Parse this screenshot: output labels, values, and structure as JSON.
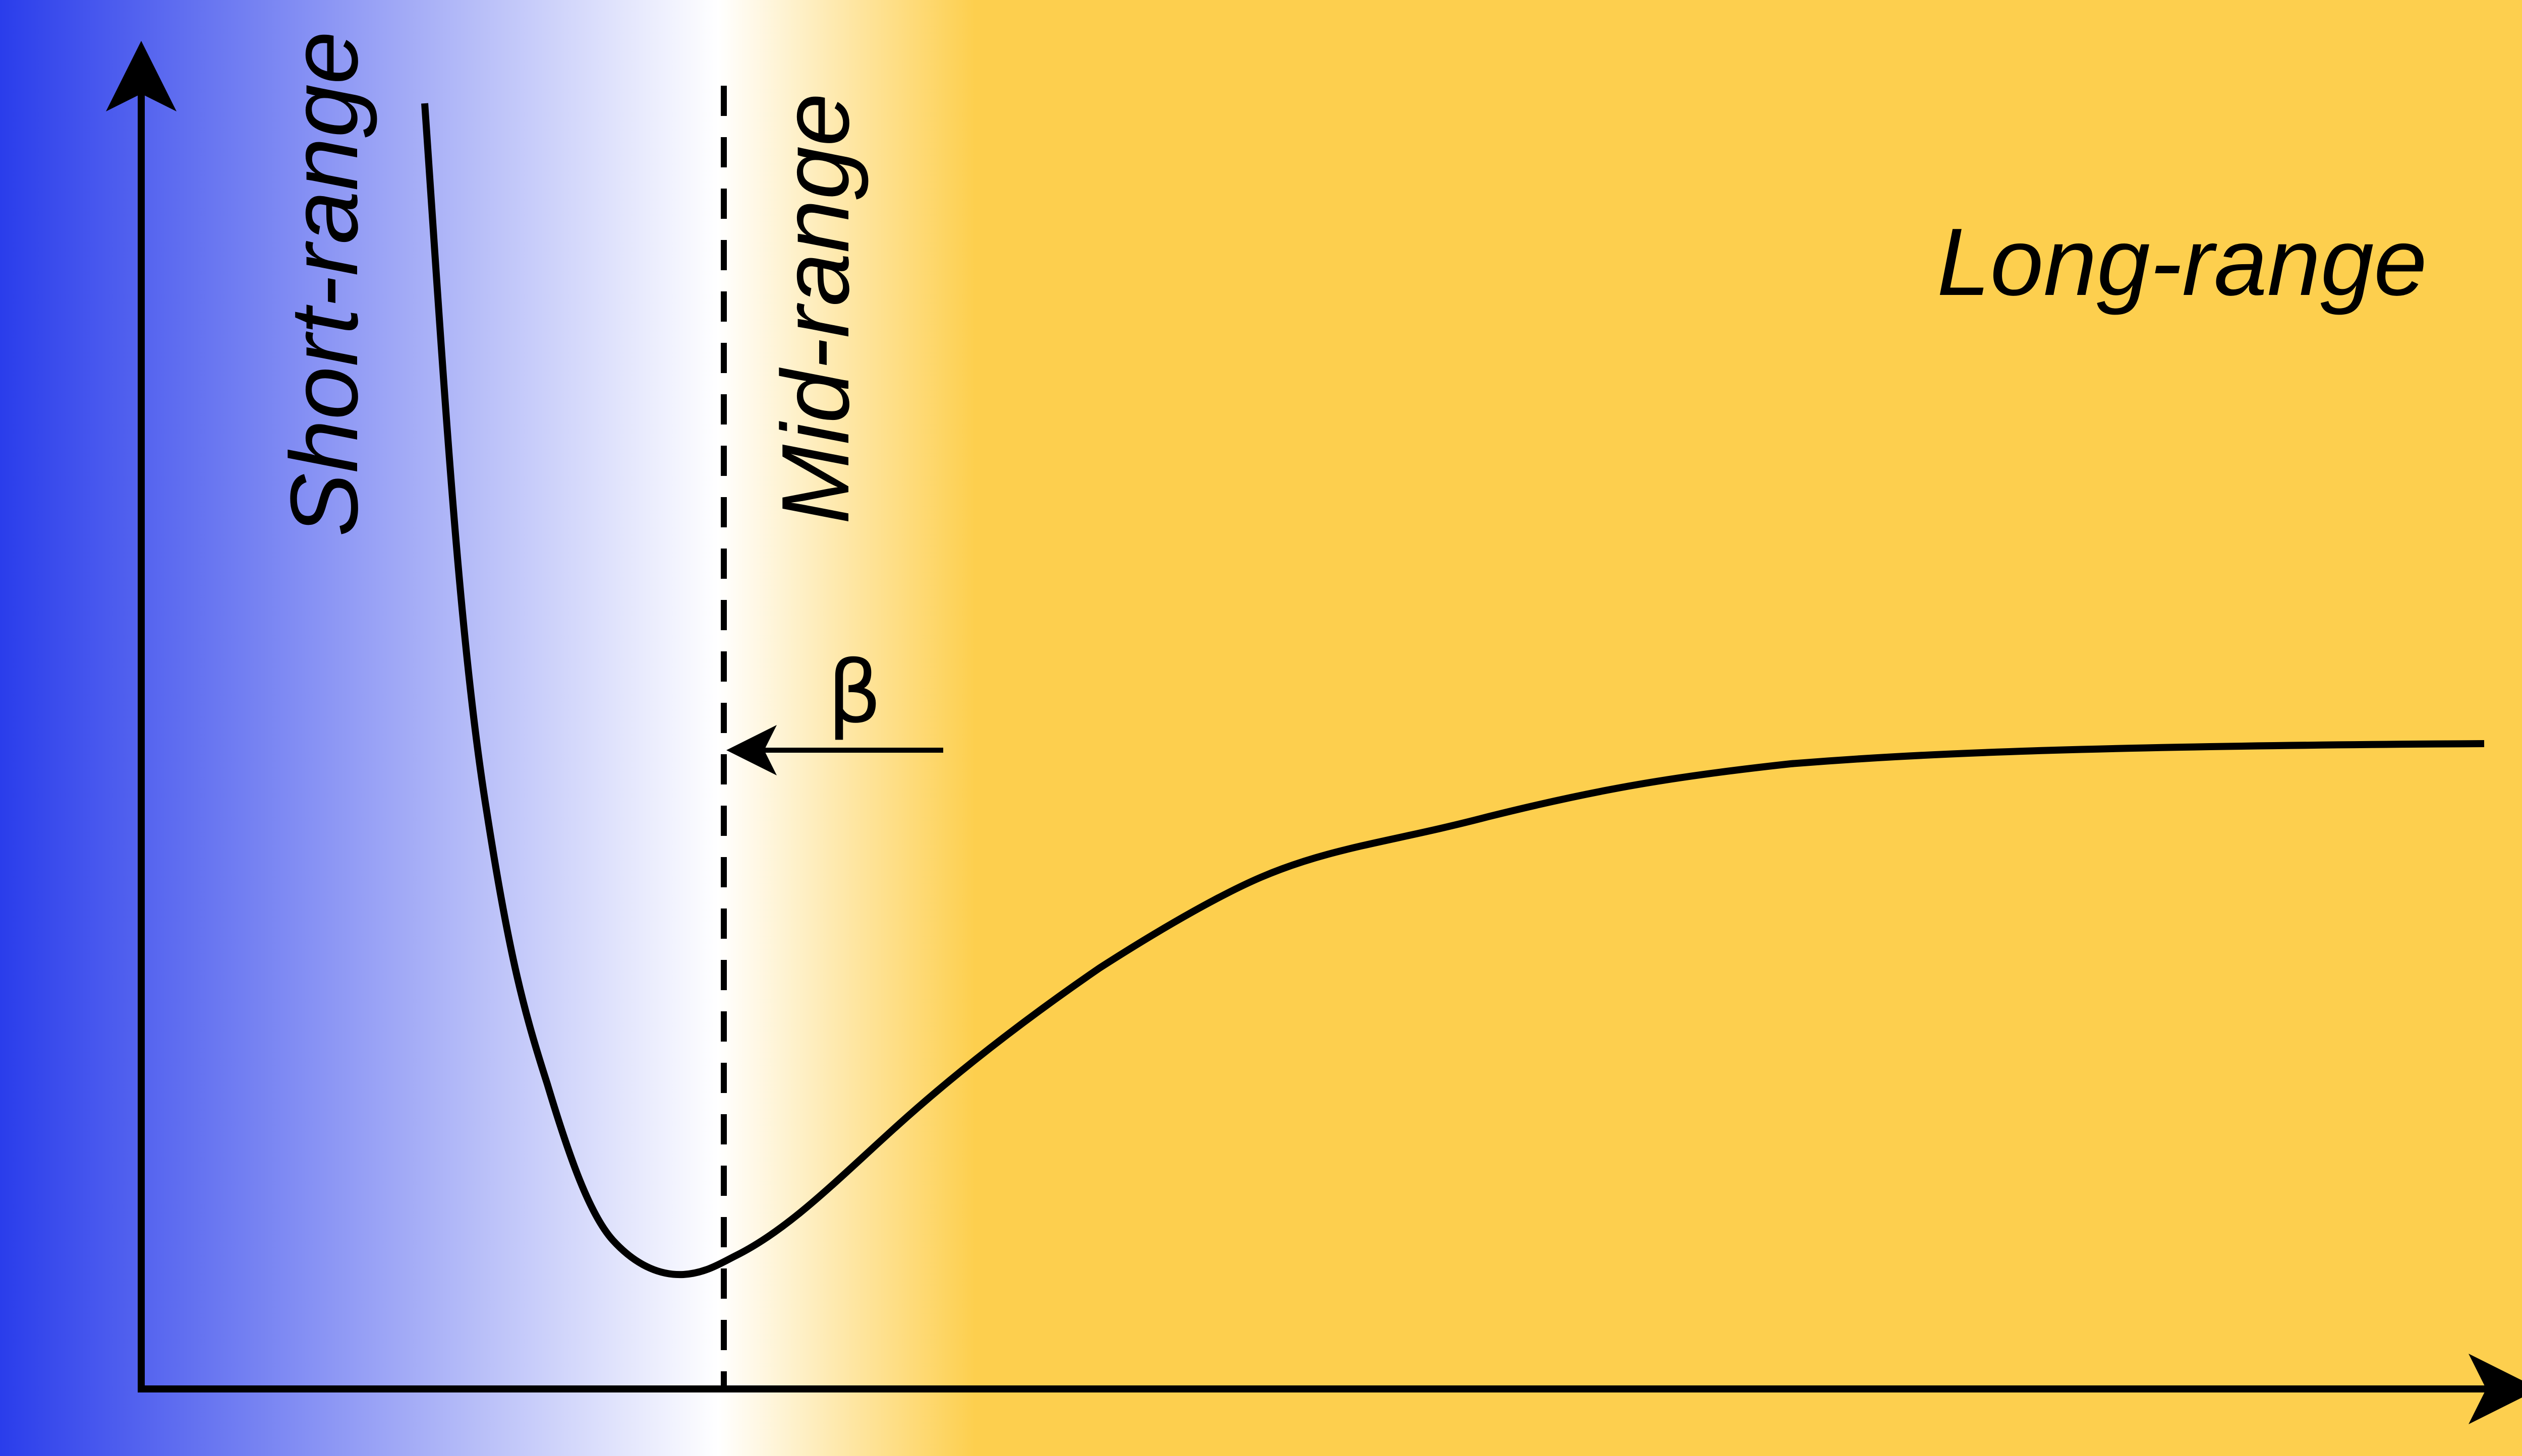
{
  "labels": {
    "short_range": "Short-range",
    "mid_range": "Mid-range",
    "long_range": "Long-range",
    "beta": "β"
  },
  "colors": {
    "short_range_blue": "#2a3deb",
    "mid_white": "#ffffff",
    "long_range_yellow": "#fdcf4e",
    "ink": "#000000"
  },
  "diagram": {
    "type": "potential-energy-curve",
    "description_parts": [
      "y-axis-arrow",
      "x-axis-arrow",
      "potential-curve",
      "cutoff-dashed-line",
      "beta-arrow"
    ]
  }
}
